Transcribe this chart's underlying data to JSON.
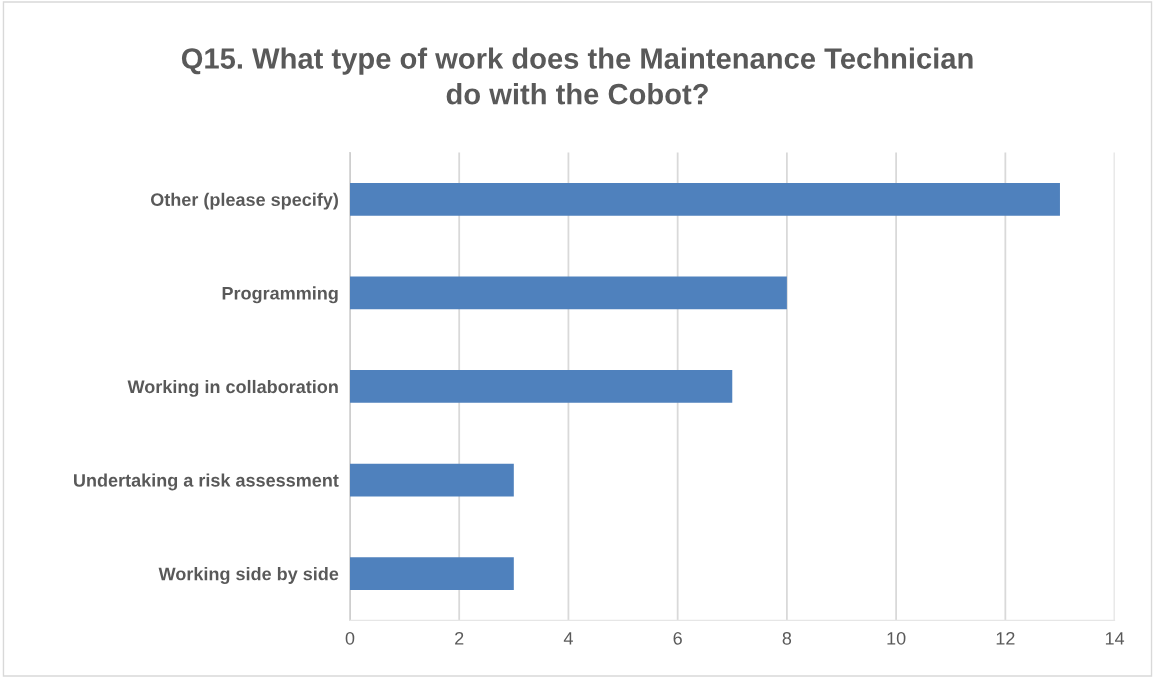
{
  "chart_data": {
    "type": "bar",
    "orientation": "horizontal",
    "title": "Q15. What type of work does the Maintenance Technician\ndo with the Cobot?",
    "categories": [
      "Other (please specify)",
      "Programming",
      "Working in collaboration",
      "Undertaking a risk assessment",
      "Working side by side"
    ],
    "values": [
      13,
      8,
      7,
      3,
      3
    ],
    "color": "#4f81bd",
    "xlim": [
      0,
      14
    ],
    "xticks": [
      0,
      2,
      4,
      6,
      8,
      10,
      12,
      14
    ],
    "grid": "x"
  }
}
